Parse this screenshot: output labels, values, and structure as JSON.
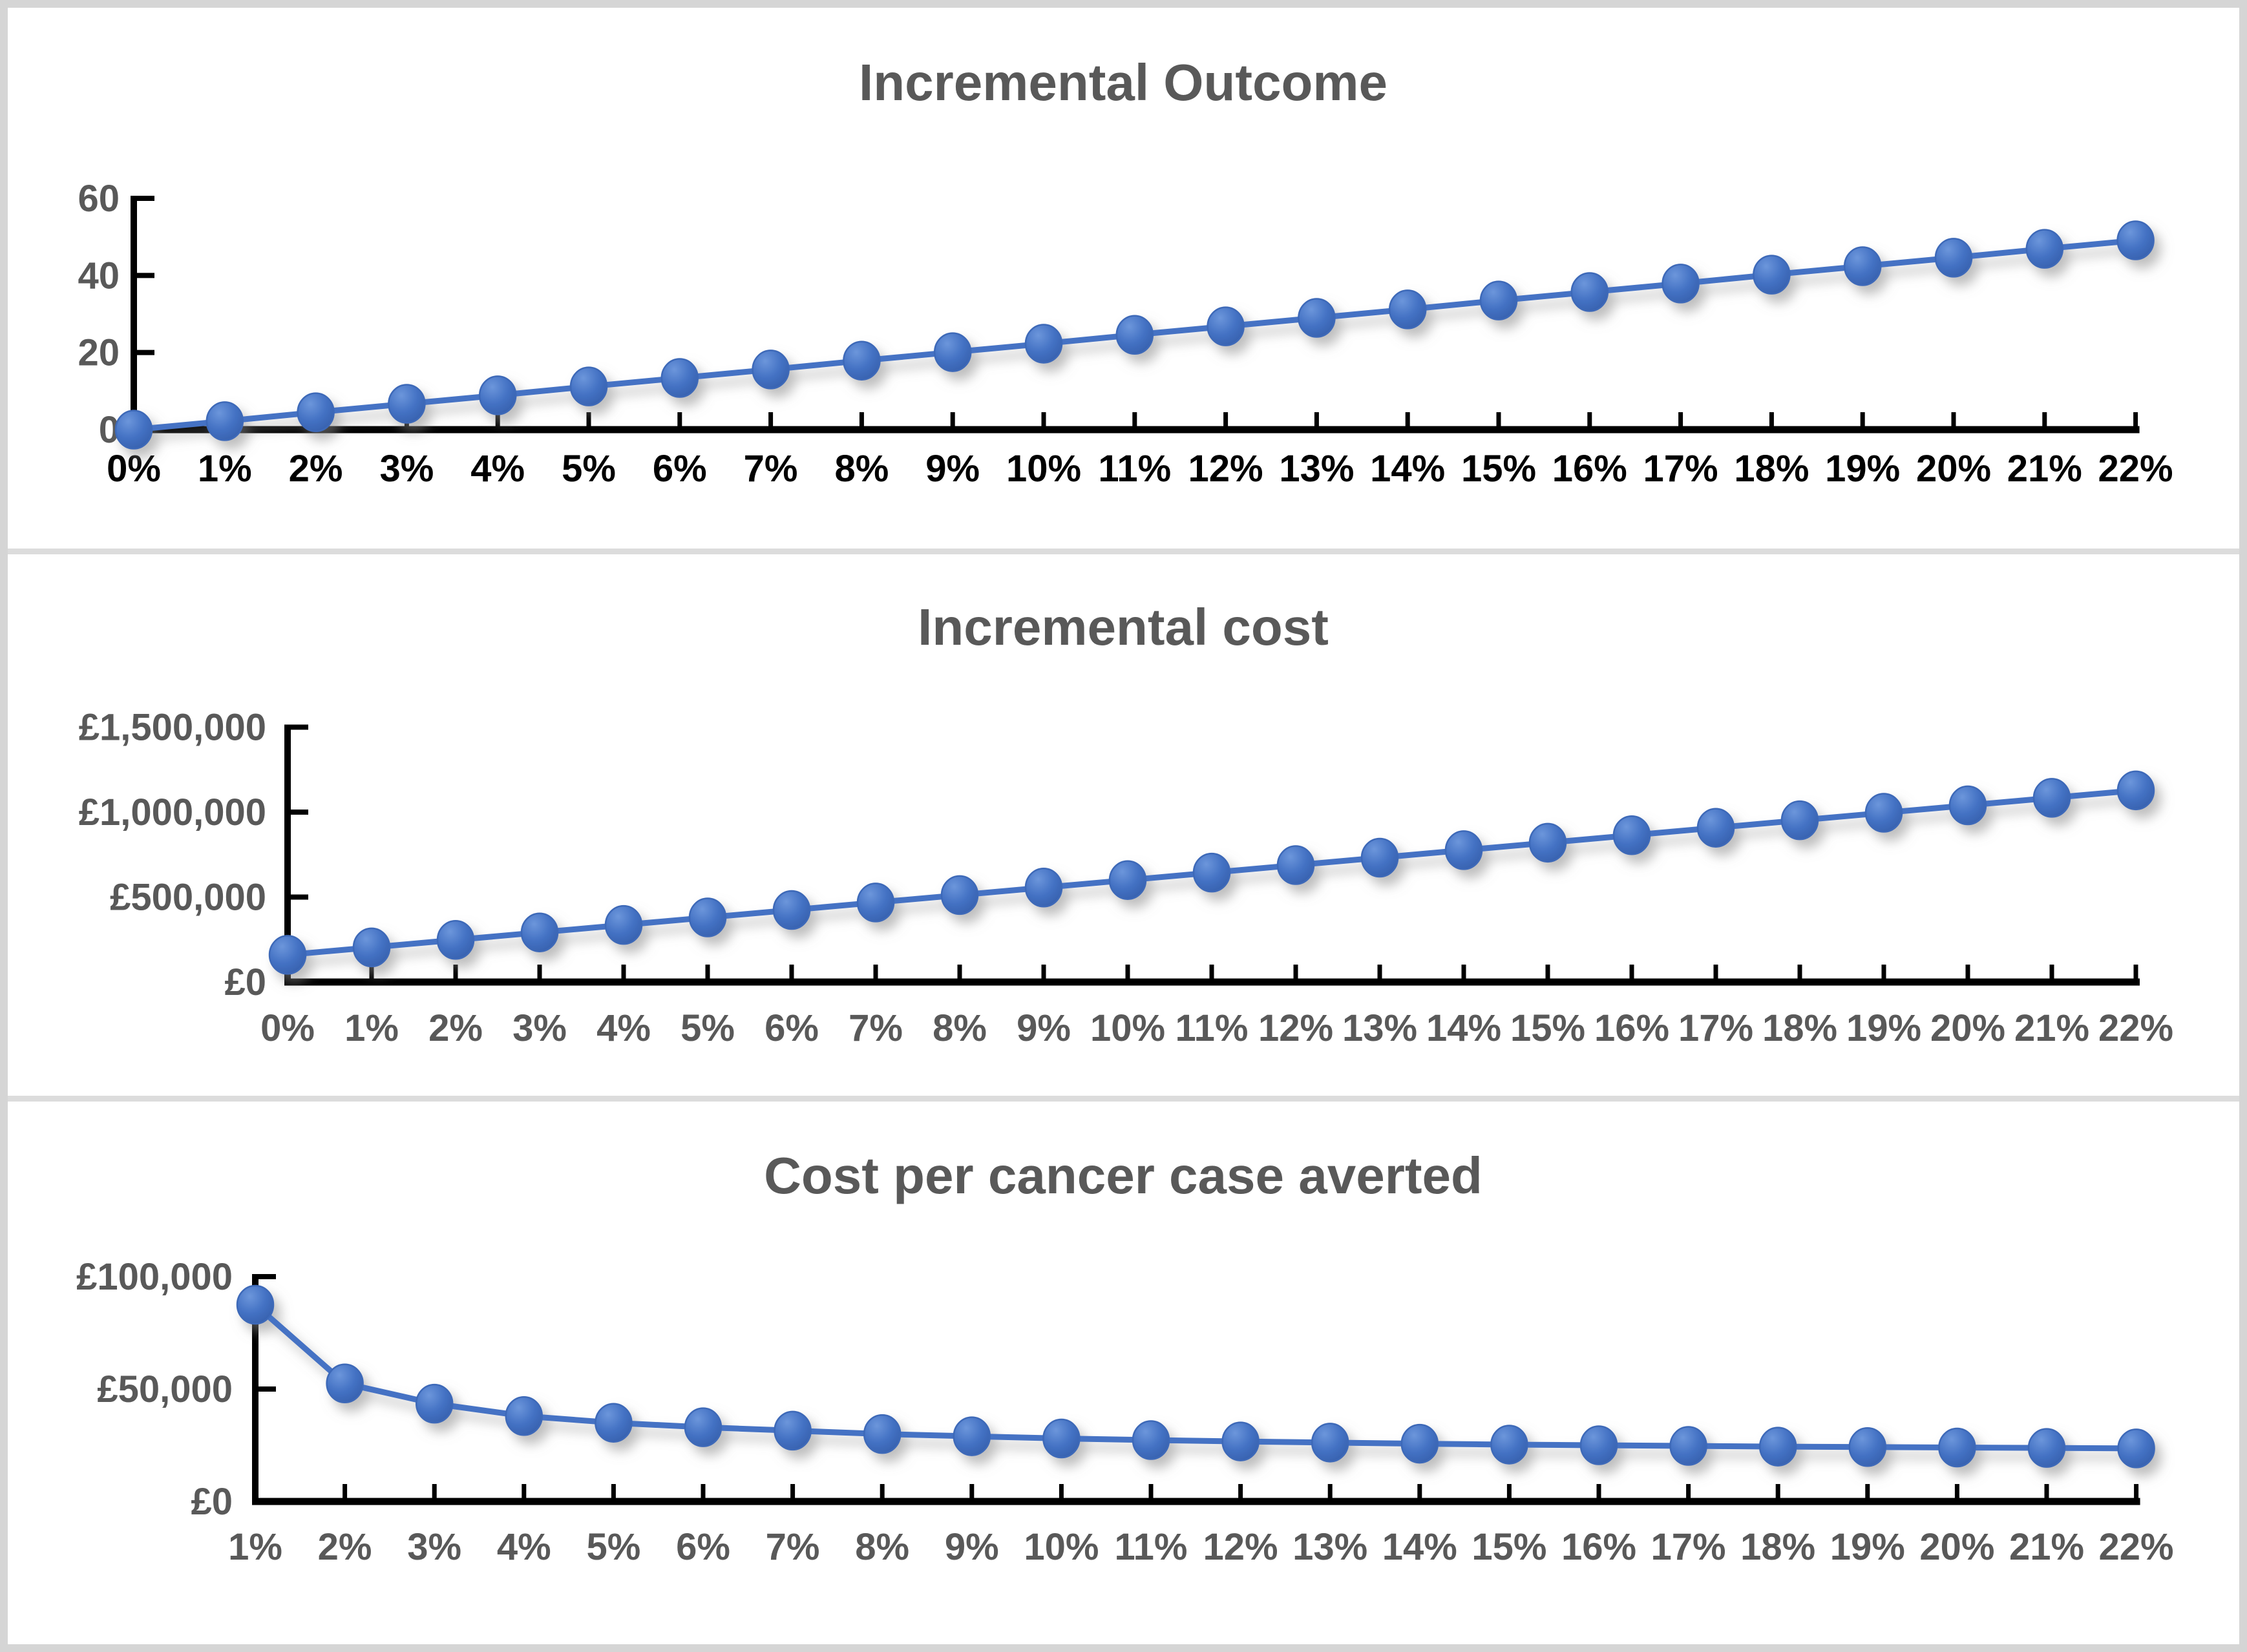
{
  "style": {
    "series_color": "#4472C4",
    "marker_edge_color": "#3E69B8",
    "marker_highlight_color": "#6C96DB",
    "marker_deep_color": "#3660AD",
    "axis_color": "#000000",
    "title_color": "#595959",
    "gray_label_color": "#595959",
    "black_label_color": "#000000",
    "frame_color": "#d5d5d5",
    "background": "#ffffff"
  },
  "chart_data": [
    {
      "type": "line",
      "title": "Incremental Outcome",
      "xlabel": "",
      "ylabel": "",
      "grid": false,
      "legend": "none",
      "ylim": [
        0,
        60
      ],
      "ytick_values": [
        0,
        20,
        40,
        60
      ],
      "ytick_labels": [
        "0",
        "20",
        "40",
        "60"
      ],
      "categories": [
        "0%",
        "1%",
        "2%",
        "3%",
        "4%",
        "5%",
        "6%",
        "7%",
        "8%",
        "9%",
        "10%",
        "11%",
        "12%",
        "13%",
        "14%",
        "15%",
        "16%",
        "17%",
        "18%",
        "19%",
        "20%",
        "21%",
        "22%"
      ],
      "values": [
        0,
        2.2,
        4.5,
        6.7,
        8.9,
        11.2,
        13.4,
        15.6,
        17.9,
        20.1,
        22.3,
        24.6,
        26.8,
        29.0,
        31.2,
        33.5,
        35.7,
        37.9,
        40.2,
        42.4,
        44.6,
        46.9,
        49.1
      ],
      "x_label_color": "#000000",
      "y_label_color": "#595959"
    },
    {
      "type": "line",
      "title": "Incremental cost",
      "xlabel": "",
      "ylabel": "",
      "grid": false,
      "legend": "none",
      "ylim": [
        0,
        1500000
      ],
      "ytick_values": [
        0,
        500000,
        1000000,
        1500000
      ],
      "ytick_labels": [
        "£0",
        "£500,000",
        "£1,000,000",
        "£1,500,000"
      ],
      "categories": [
        "0%",
        "1%",
        "2%",
        "3%",
        "4%",
        "5%",
        "6%",
        "7%",
        "8%",
        "9%",
        "10%",
        "11%",
        "12%",
        "13%",
        "14%",
        "15%",
        "16%",
        "17%",
        "18%",
        "19%",
        "20%",
        "21%",
        "22%"
      ],
      "values": [
        160000,
        204000,
        248000,
        292000,
        336000,
        380000,
        424000,
        468000,
        512000,
        556000,
        600000,
        644000,
        688000,
        732000,
        776000,
        820000,
        864000,
        908000,
        952000,
        996000,
        1040000,
        1084000,
        1128000
      ],
      "x_label_color": "#595959",
      "y_label_color": "#595959"
    },
    {
      "type": "line",
      "title": "Cost per cancer case averted",
      "xlabel": "",
      "ylabel": "",
      "grid": false,
      "legend": "none",
      "ylim": [
        0,
        100000
      ],
      "ytick_values": [
        0,
        50000,
        100000
      ],
      "ytick_labels": [
        "£0",
        "£50,000",
        "£100,000"
      ],
      "categories": [
        "1%",
        "2%",
        "3%",
        "4%",
        "5%",
        "6%",
        "7%",
        "8%",
        "9%",
        "10%",
        "11%",
        "12%",
        "13%",
        "14%",
        "15%",
        "16%",
        "17%",
        "18%",
        "19%",
        "20%",
        "21%",
        "22%"
      ],
      "values": [
        87500,
        52500,
        43500,
        38000,
        35000,
        33000,
        31500,
        30000,
        29000,
        28000,
        27300,
        26700,
        26200,
        25700,
        25300,
        25000,
        24700,
        24400,
        24200,
        24000,
        23800,
        23600
      ],
      "x_label_color": "#595959",
      "y_label_color": "#595959"
    }
  ]
}
